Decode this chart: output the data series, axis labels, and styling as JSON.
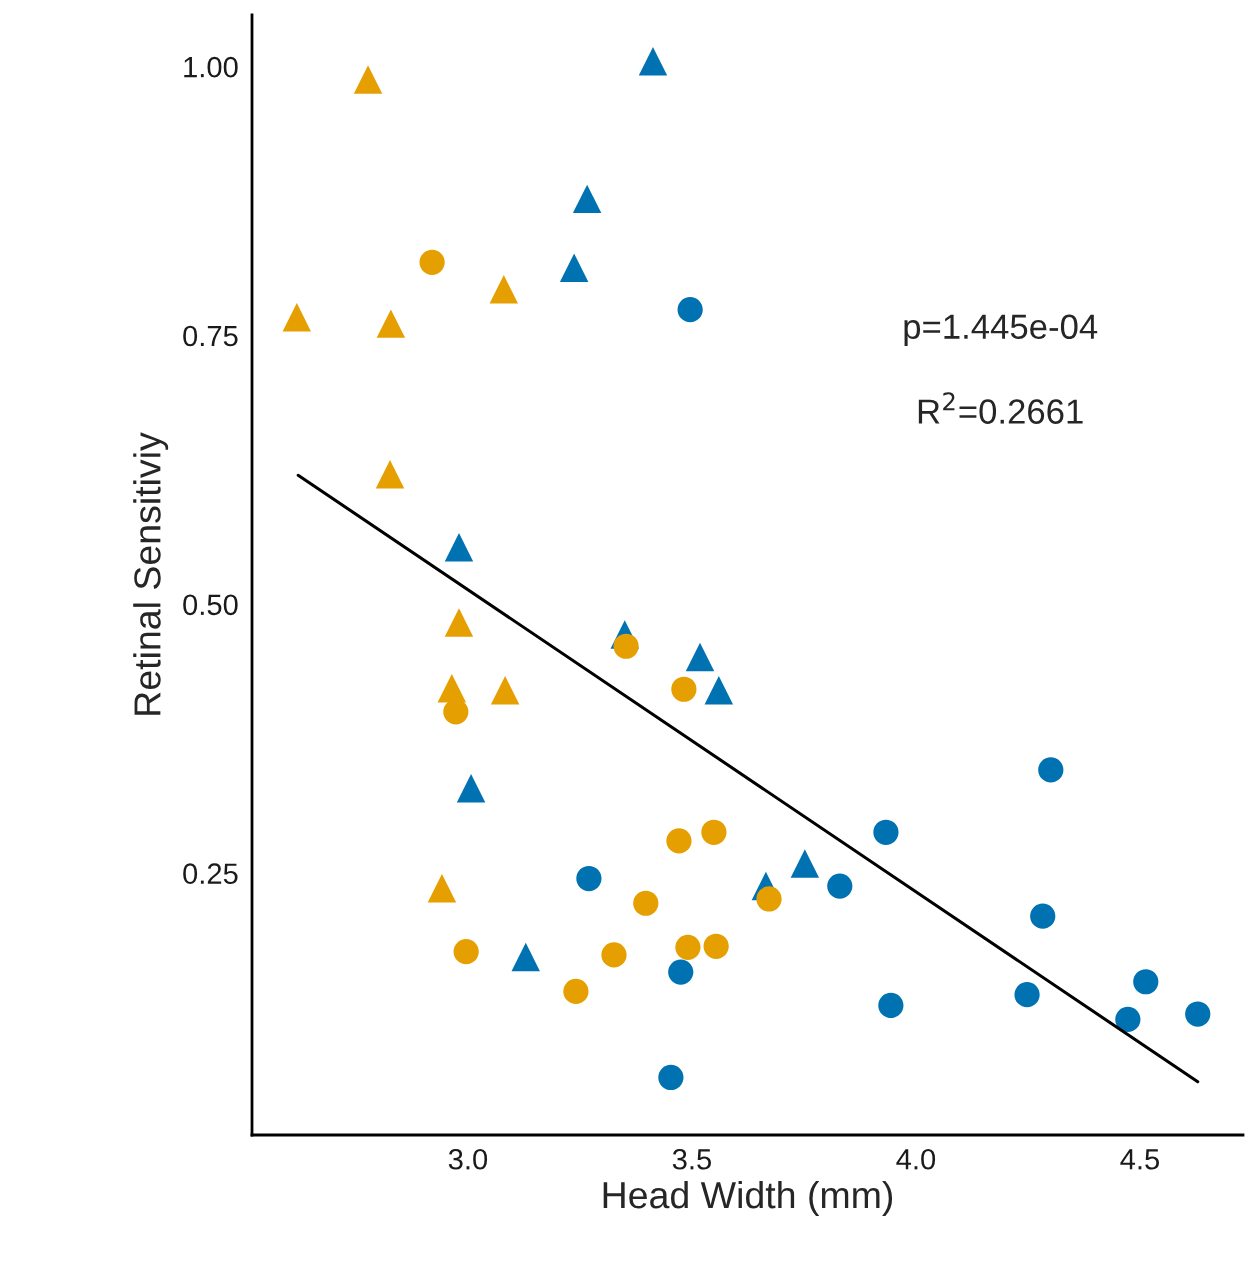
{
  "chart_data": {
    "type": "scatter",
    "xlabel": "Head Width (mm)",
    "ylabel": "Retinal Sensitiviy",
    "xlim": [
      2.518,
      4.73
    ],
    "ylim": [
      0.0065,
      1.048
    ],
    "xticks": [
      {
        "value": 3.0,
        "label": "3.0"
      },
      {
        "value": 3.5,
        "label": "3.5"
      },
      {
        "value": 4.0,
        "label": "4.0"
      },
      {
        "value": 4.5,
        "label": "4.5"
      }
    ],
    "yticks": [
      {
        "value": 0.25,
        "label": "0.25"
      },
      {
        "value": 0.5,
        "label": "0.50"
      },
      {
        "value": 0.75,
        "label": "0.75"
      },
      {
        "value": 1.0,
        "label": "1.00"
      }
    ],
    "grid": false,
    "annotations": [
      "p=1.445e-04",
      "R$^{2}$=0.2661"
    ],
    "series": [
      {
        "marker": "triangle",
        "color": "#e69f00",
        "x": [
          2.618,
          2.777,
          2.828,
          2.826,
          2.98,
          2.964,
          3.083,
          3.08,
          2.942
        ],
        "values": [
          0.767,
          0.988,
          0.761,
          0.621,
          0.483,
          0.422,
          0.42,
          0.793,
          0.236
        ]
      },
      {
        "marker": "triangle",
        "color": "#0072b2",
        "x": [
          3.413,
          3.266,
          3.237,
          2.98,
          3.007,
          3.129,
          3.35,
          3.518,
          3.56,
          3.665,
          3.752
        ],
        "values": [
          1.005,
          0.877,
          0.813,
          0.553,
          0.329,
          0.172,
          0.472,
          0.451,
          0.42,
          0.238,
          0.259
        ]
      },
      {
        "marker": "circle",
        "color": "#e69f00",
        "x": [
          2.92,
          2.973,
          2.996,
          3.241,
          3.326,
          3.397,
          3.353,
          3.482,
          3.471,
          3.549,
          3.491,
          3.554,
          3.672
        ],
        "values": [
          0.818,
          0.4,
          0.177,
          0.14,
          0.174,
          0.222,
          0.461,
          0.421,
          0.28,
          0.288,
          0.181,
          0.182,
          0.226
        ]
      },
      {
        "marker": "circle",
        "color": "#0072b2",
        "x": [
          3.496,
          3.27,
          3.475,
          3.453,
          3.83,
          3.933,
          3.944,
          4.248,
          4.283,
          4.301,
          4.473,
          4.513,
          4.629
        ],
        "values": [
          0.774,
          0.245,
          0.158,
          0.06,
          0.238,
          0.288,
          0.127,
          0.137,
          0.21,
          0.346,
          0.114,
          0.149,
          0.119
        ]
      },
      {
        "type": "line",
        "color": "#000000",
        "line_style": "solid",
        "x": [
          2.621,
          4.629
        ],
        "values": [
          0.62,
          0.056
        ]
      }
    ]
  }
}
